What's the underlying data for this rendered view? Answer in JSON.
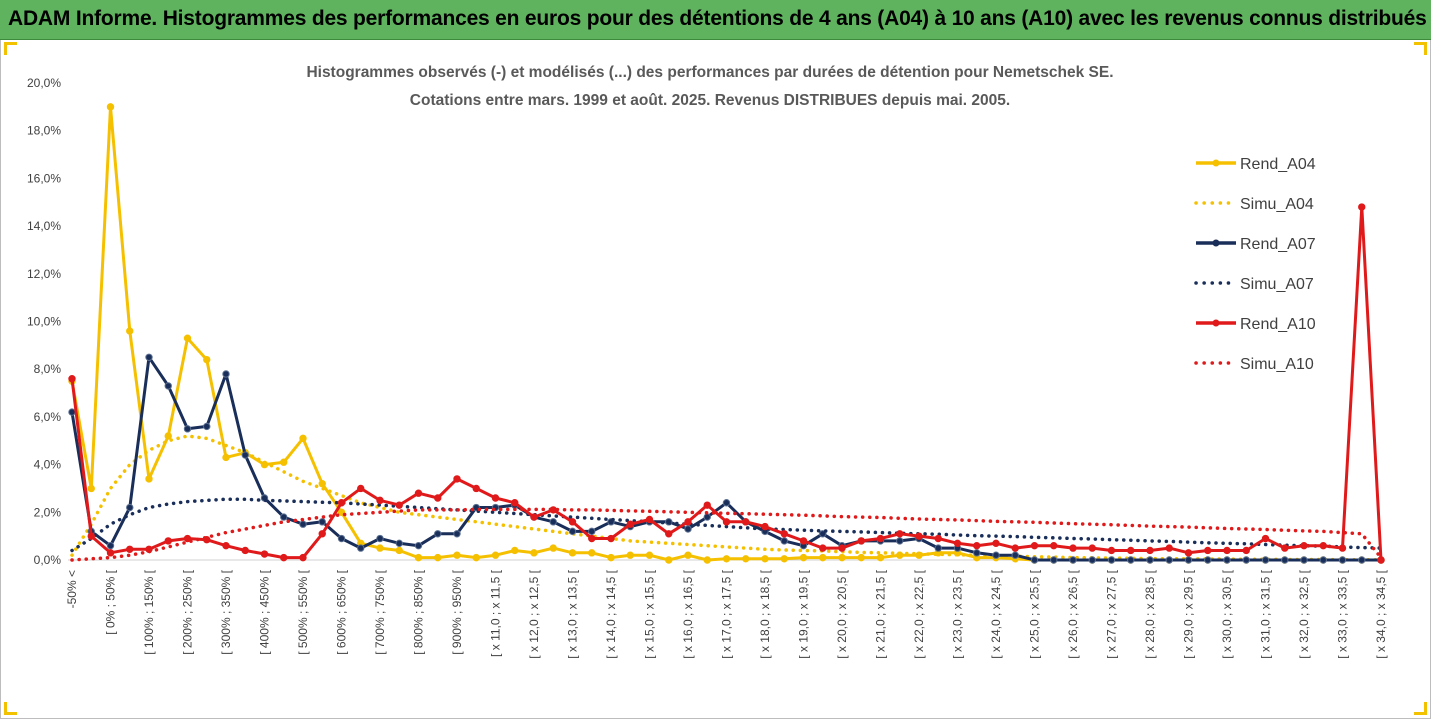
{
  "header": {
    "title": "ADAM Informe. Histogrammes des performances en euros pour des détentions de 4 ans (A04) à 10 ans (A10) avec les revenus connus distribués"
  },
  "chart_data": {
    "type": "line",
    "title": "Histogrammes observés (-) et modélisés (...) des performances par durées de détention pour Nemetschek SE.",
    "subtitle": "Cotations entre mars. 1999 et août. 2025. Revenus DISTRIBUES depuis mai. 2005.",
    "ylim": [
      0,
      20
    ],
    "ytick_labels": [
      "0,0%",
      "2,0%",
      "4,0%",
      "6,0%",
      "8,0%",
      "10,0%",
      "12,0%",
      "14,0%",
      "16,0%",
      "18,0%",
      "20,0%"
    ],
    "categories_count": 69,
    "x_tick_labels": [
      "-50% <",
      "[ 0% ; 50% [",
      "[ 100% ; 150% [",
      "[ 200% ; 250% [",
      "[ 300% ; 350% [",
      "[ 400% ; 450% [",
      "[ 500% ; 550% [",
      "[ 600% ; 650% [",
      "[ 700% ; 750% [",
      "[ 800% ; 850% [",
      "[ 900% ; 950% [",
      "[ x 11,0 ; x 11,5 [",
      "[ x 12,0 ; x 12,5 [",
      "[ x 13,0 ; x 13,5 [",
      "[ x 14,0 ; x 14,5 [",
      "[ x 15,0 ; x 15,5 [",
      "[ x 16,0 ; x 16,5 [",
      "[ x 17,0 ; x 17,5 [",
      "[ x 18,0 ; x 18,5 [",
      "[ x 19,0 ; x 19,5 [",
      "[ x 20,0 ; x 20,5 [",
      "[ x 21,0 ; x 21,5 [",
      "[ x 22,0 ; x 22,5 [",
      "[ x 23,0 ; x 23,5 [",
      "[ x 24,0 ; x 24,5 [",
      "[ x 25,0 ; x 25,5 [",
      "[ x 26,0 ; x 26,5 [",
      "[ x 27,0 ; x 27,5 [",
      "[ x 28,0 ; x 28,5 [",
      "[ x 29,0 ; x 29,5 [",
      "[ x 30,0 ; x 30,5 [",
      "[ x 31,0 ; x 31,5 [",
      "[ x 32,0 ; x 32,5 [",
      "[ x 33,0 ; x 33,5 [",
      "[ x 34,0 ; x 34,5 ["
    ],
    "legend_position": "right",
    "grid": false,
    "series": [
      {
        "name": "Rend_A04",
        "style": "solid",
        "color": "#f5c000",
        "values": [
          7.5,
          3.0,
          19.0,
          9.6,
          3.4,
          5.2,
          9.3,
          8.4,
          4.3,
          4.5,
          4.0,
          4.1,
          5.1,
          3.2,
          2.0,
          0.7,
          0.5,
          0.4,
          0.1,
          0.1,
          0.2,
          0.1,
          0.2,
          0.4,
          0.3,
          0.5,
          0.3,
          0.3,
          0.1,
          0.2,
          0.2,
          0.0,
          0.2,
          0.0,
          0.05,
          0.05,
          0.05,
          0.05,
          0.1,
          0.1,
          0.1,
          0.1,
          0.1,
          0.2,
          0.2,
          0.3,
          0.3,
          0.1,
          0.1,
          0.05,
          0.0,
          0.0,
          0.0,
          0.0,
          0.0,
          0.0,
          0.0,
          0.0,
          0.0,
          0.0,
          0.0,
          0.0,
          0.0,
          0.0,
          0.0,
          0.0,
          0.0,
          0.0,
          0.0
        ]
      },
      {
        "name": "Simu_A04",
        "style": "dotted",
        "color": "#f5c000",
        "values": [
          0.2,
          1.5,
          3.0,
          4.0,
          4.6,
          5.0,
          5.2,
          5.1,
          4.8,
          4.5,
          4.1,
          3.7,
          3.3,
          3.0,
          2.7,
          2.4,
          2.2,
          2.0,
          1.9,
          1.8,
          1.7,
          1.6,
          1.5,
          1.4,
          1.3,
          1.2,
          1.1,
          1.0,
          0.9,
          0.8,
          0.75,
          0.7,
          0.65,
          0.6,
          0.55,
          0.5,
          0.45,
          0.42,
          0.4,
          0.38,
          0.35,
          0.32,
          0.3,
          0.28,
          0.26,
          0.24,
          0.22,
          0.2,
          0.18,
          0.16,
          0.14,
          0.12,
          0.1,
          0.09,
          0.08,
          0.07,
          0.06,
          0.05,
          0.05,
          0.04,
          0.04,
          0.03,
          0.03,
          0.02,
          0.02,
          0.02,
          0.01,
          0.01,
          0.01
        ]
      },
      {
        "name": "Rend_A07",
        "style": "solid",
        "color": "#1a2e5a",
        "values": [
          6.2,
          1.2,
          0.6,
          2.2,
          8.5,
          7.3,
          5.5,
          5.6,
          7.8,
          4.4,
          2.6,
          1.8,
          1.5,
          1.6,
          0.9,
          0.5,
          0.9,
          0.7,
          0.6,
          1.1,
          1.1,
          2.2,
          2.2,
          2.3,
          1.8,
          1.6,
          1.2,
          1.2,
          1.6,
          1.4,
          1.6,
          1.6,
          1.3,
          1.8,
          2.4,
          1.6,
          1.2,
          0.8,
          0.6,
          1.1,
          0.6,
          0.8,
          0.8,
          0.8,
          0.9,
          0.5,
          0.5,
          0.3,
          0.2,
          0.2,
          0.0,
          0.0,
          0.0,
          0.0,
          0.0,
          0.0,
          0.0,
          0.0,
          0.0,
          0.0,
          0.0,
          0.0,
          0.0,
          0.0,
          0.0,
          0.0,
          0.0,
          0.0,
          0.0
        ]
      },
      {
        "name": "Simu_A07",
        "style": "dotted",
        "color": "#1a2e5a",
        "values": [
          0.4,
          0.9,
          1.5,
          1.9,
          2.2,
          2.35,
          2.45,
          2.5,
          2.55,
          2.55,
          2.5,
          2.48,
          2.45,
          2.42,
          2.4,
          2.35,
          2.3,
          2.25,
          2.2,
          2.15,
          2.1,
          2.05,
          2.0,
          1.95,
          1.9,
          1.85,
          1.8,
          1.75,
          1.7,
          1.65,
          1.6,
          1.55,
          1.5,
          1.45,
          1.4,
          1.35,
          1.3,
          1.28,
          1.25,
          1.22,
          1.2,
          1.18,
          1.15,
          1.12,
          1.1,
          1.08,
          1.05,
          1.02,
          1.0,
          0.98,
          0.95,
          0.93,
          0.9,
          0.88,
          0.85,
          0.83,
          0.8,
          0.78,
          0.75,
          0.72,
          0.7,
          0.68,
          0.65,
          0.62,
          0.6,
          0.58,
          0.55,
          0.52,
          0.5
        ]
      },
      {
        "name": "Rend_A10",
        "style": "solid",
        "color": "#e01a1a",
        "values": [
          7.6,
          1.0,
          0.3,
          0.45,
          0.45,
          0.8,
          0.9,
          0.85,
          0.6,
          0.4,
          0.25,
          0.1,
          0.1,
          1.1,
          2.4,
          3.0,
          2.5,
          2.3,
          2.8,
          2.6,
          3.4,
          3.0,
          2.6,
          2.4,
          1.8,
          2.1,
          1.6,
          0.9,
          0.9,
          1.5,
          1.7,
          1.1,
          1.6,
          2.3,
          1.6,
          1.6,
          1.4,
          1.1,
          0.8,
          0.5,
          0.5,
          0.8,
          0.9,
          1.1,
          1.0,
          0.9,
          0.7,
          0.6,
          0.7,
          0.5,
          0.6,
          0.6,
          0.5,
          0.5,
          0.4,
          0.4,
          0.4,
          0.5,
          0.3,
          0.4,
          0.4,
          0.4,
          0.9,
          0.5,
          0.6,
          0.6,
          0.5,
          14.8,
          0.0
        ]
      },
      {
        "name": "Simu_A10",
        "style": "dotted",
        "color": "#e01a1a",
        "values": [
          0.0,
          0.05,
          0.1,
          0.2,
          0.35,
          0.55,
          0.75,
          0.95,
          1.15,
          1.3,
          1.45,
          1.6,
          1.7,
          1.8,
          1.9,
          1.95,
          2.0,
          2.05,
          2.1,
          2.1,
          2.1,
          2.12,
          2.12,
          2.12,
          2.12,
          2.12,
          2.1,
          2.1,
          2.08,
          2.06,
          2.04,
          2.02,
          2.0,
          1.98,
          1.96,
          1.94,
          1.92,
          1.9,
          1.88,
          1.85,
          1.82,
          1.8,
          1.78,
          1.75,
          1.72,
          1.7,
          1.68,
          1.65,
          1.62,
          1.6,
          1.58,
          1.55,
          1.52,
          1.5,
          1.48,
          1.45,
          1.42,
          1.4,
          1.38,
          1.35,
          1.32,
          1.3,
          1.28,
          1.25,
          1.22,
          1.2,
          1.15,
          1.1,
          0.1
        ]
      }
    ]
  }
}
